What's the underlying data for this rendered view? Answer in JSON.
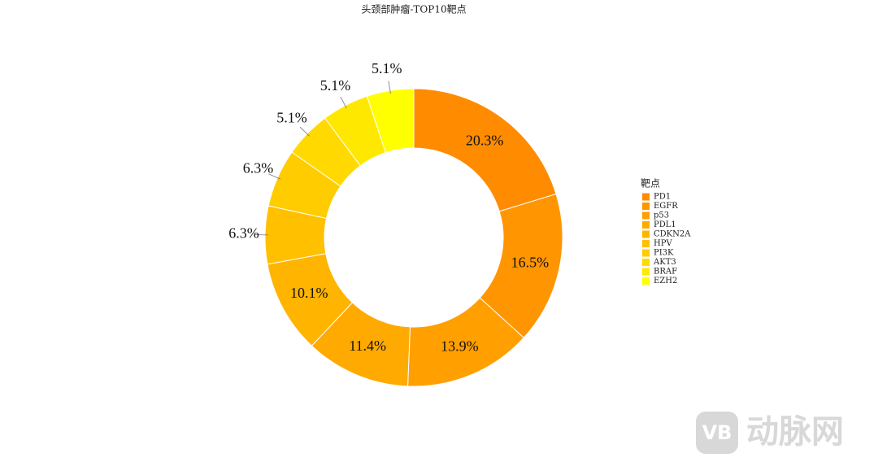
{
  "chart_data": {
    "type": "pie",
    "title": "头颈部肿瘤-TOP10靶点",
    "legend_title": "靶点",
    "legend_position": "right",
    "donut": true,
    "categories": [
      "PD1",
      "EGFR",
      "p53",
      "PDL1",
      "CDKN2A",
      "HPV",
      "PI3K",
      "AKT3",
      "BRAF",
      "EZH2"
    ],
    "values": [
      20.3,
      16.5,
      13.9,
      11.4,
      10.1,
      6.3,
      6.3,
      5.1,
      5.1,
      5.1
    ],
    "value_labels": [
      "20.3%",
      "16.5%",
      "13.9%",
      "11.4%",
      "10.1%",
      "6.3%",
      "6.3%",
      "5.1%",
      "5.1%",
      "5.1%"
    ],
    "colors": [
      "#FF8C00",
      "#FF9500",
      "#FF9F00",
      "#FFAA00",
      "#FFB400",
      "#FFC000",
      "#FFCC00",
      "#FFD900",
      "#FFE800",
      "#FFFF00"
    ]
  },
  "watermark": {
    "logo": "VB",
    "text": "动脉网"
  }
}
